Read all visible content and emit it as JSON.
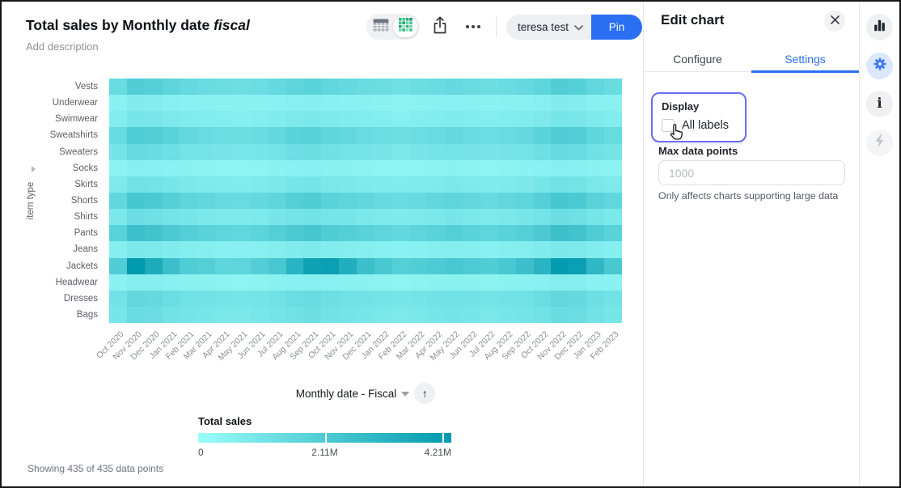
{
  "header": {
    "title_main": "Total sales by Monthly date",
    "title_italic": "fiscal",
    "description_placeholder": "Add description"
  },
  "toolbar": {
    "workbook_name": "teresa test",
    "pin_label": "Pin"
  },
  "icons": {
    "arrow_up": "↑",
    "info_glyph": "i"
  },
  "axis_control": {
    "label": "Monthly date - Fiscal"
  },
  "footer": {
    "status": "Showing 435 of 435 data points"
  },
  "panel": {
    "title": "Edit chart",
    "tabs": [
      {
        "label": "Configure",
        "active": false
      },
      {
        "label": "Settings",
        "active": true
      }
    ],
    "display": {
      "label": "Display",
      "checkbox_label": "All labels",
      "checked": false
    },
    "max_data_points": {
      "label": "Max data points",
      "placeholder": "1000",
      "value": ""
    },
    "helper": "Only affects charts supporting large data"
  },
  "chart_data": {
    "type": "heatmap",
    "title": "Total sales by Monthly date fiscal",
    "y_axis_title": "item type",
    "values_unit": "millions",
    "x": [
      "Oct 2020",
      "Nov 2020",
      "Dec 2020",
      "Jan 2021",
      "Feb 2021",
      "Mar 2021",
      "Apr 2021",
      "May 2021",
      "Jun 2021",
      "Jul 2021",
      "Aug 2021",
      "Sep 2021",
      "Oct 2021",
      "Nov 2021",
      "Dec 2021",
      "Jan 2022",
      "Feb 2022",
      "Mar 2022",
      "Apr 2022",
      "May 2022",
      "Jun 2022",
      "Jul 2022",
      "Aug 2022",
      "Sep 2022",
      "Oct 2022",
      "Nov 2022",
      "Dec 2022",
      "Jan 2023",
      "Feb 2023"
    ],
    "y": [
      "Vests",
      "Underwear",
      "Swimwear",
      "Sweatshirts",
      "Sweaters",
      "Socks",
      "Skirts",
      "Shorts",
      "Shirts",
      "Pants",
      "Jeans",
      "Jackets",
      "Headwear",
      "Dresses",
      "Bags"
    ],
    "values": [
      [
        1.81,
        2.38,
        2.28,
        2.09,
        1.9,
        1.81,
        1.71,
        1.67,
        1.75,
        1.9,
        2.09,
        2.19,
        2.0,
        1.9,
        1.81,
        1.71,
        1.62,
        1.71,
        1.81,
        1.9,
        1.81,
        1.71,
        1.81,
        1.9,
        2.09,
        2.38,
        2.28,
        2.0,
        1.81
      ],
      [
        0.81,
        1.06,
        1.02,
        0.94,
        0.85,
        0.81,
        0.77,
        0.75,
        0.78,
        0.85,
        0.94,
        0.98,
        0.89,
        0.85,
        0.81,
        0.77,
        0.72,
        0.77,
        0.81,
        0.85,
        0.81,
        0.77,
        0.81,
        0.85,
        0.94,
        1.06,
        1.02,
        0.89,
        0.81
      ],
      [
        1.05,
        1.38,
        1.32,
        1.21,
        1.1,
        1.05,
        0.99,
        0.97,
        1.01,
        1.1,
        1.21,
        1.27,
        1.16,
        1.1,
        1.05,
        0.99,
        0.94,
        0.99,
        1.05,
        1.1,
        1.05,
        0.99,
        1.05,
        1.1,
        1.21,
        1.38,
        1.32,
        1.16,
        1.05
      ],
      [
        1.85,
        2.44,
        2.34,
        2.15,
        1.95,
        1.85,
        1.76,
        1.72,
        1.79,
        1.95,
        2.15,
        2.24,
        2.05,
        1.95,
        1.85,
        1.76,
        1.66,
        1.76,
        1.85,
        1.95,
        1.85,
        1.76,
        1.85,
        1.95,
        2.15,
        2.44,
        2.34,
        2.05,
        1.85
      ],
      [
        1.43,
        1.88,
        1.8,
        1.65,
        1.5,
        1.43,
        1.35,
        1.32,
        1.38,
        1.5,
        1.65,
        1.73,
        1.58,
        1.5,
        1.43,
        1.35,
        1.28,
        1.35,
        1.43,
        1.5,
        1.43,
        1.35,
        1.43,
        1.5,
        1.65,
        1.88,
        1.8,
        1.58,
        1.43
      ],
      [
        0.71,
        0.94,
        0.9,
        0.83,
        0.75,
        0.71,
        0.68,
        0.66,
        0.69,
        0.75,
        0.83,
        0.86,
        0.79,
        0.75,
        0.71,
        0.68,
        0.64,
        0.68,
        0.71,
        0.75,
        0.71,
        0.68,
        0.71,
        0.75,
        0.83,
        0.94,
        0.9,
        0.79,
        0.71
      ],
      [
        1.19,
        1.56,
        1.5,
        1.38,
        1.25,
        1.19,
        1.13,
        1.1,
        1.15,
        1.25,
        1.38,
        1.44,
        1.31,
        1.25,
        1.19,
        1.13,
        1.06,
        1.13,
        1.19,
        1.25,
        1.19,
        1.13,
        1.19,
        1.25,
        1.38,
        1.56,
        1.5,
        1.31,
        1.19
      ],
      [
        2.0,
        2.63,
        2.52,
        2.31,
        2.1,
        2.0,
        1.89,
        1.85,
        1.93,
        2.1,
        2.31,
        2.42,
        2.21,
        2.1,
        2.0,
        1.89,
        1.79,
        1.89,
        2.0,
        2.1,
        2.0,
        1.89,
        2.0,
        2.1,
        2.31,
        2.63,
        2.52,
        2.21,
        2.0
      ],
      [
        1.28,
        1.69,
        1.62,
        1.49,
        1.35,
        1.28,
        1.22,
        1.19,
        1.24,
        1.35,
        1.49,
        1.55,
        1.42,
        1.35,
        1.28,
        1.22,
        1.15,
        1.22,
        1.28,
        1.35,
        1.28,
        1.22,
        1.28,
        1.35,
        1.49,
        1.69,
        1.62,
        1.42,
        1.28
      ],
      [
        2.19,
        2.88,
        2.76,
        2.53,
        2.3,
        2.19,
        2.07,
        2.02,
        2.12,
        2.3,
        2.53,
        2.65,
        2.42,
        2.3,
        2.19,
        2.07,
        1.96,
        2.07,
        2.19,
        2.3,
        2.19,
        2.07,
        2.19,
        2.3,
        2.53,
        2.88,
        2.76,
        2.42,
        2.19
      ],
      [
        0.95,
        1.25,
        1.2,
        1.1,
        1.0,
        0.95,
        0.9,
        0.88,
        0.92,
        1.0,
        1.1,
        1.15,
        1.05,
        1.0,
        0.95,
        0.9,
        0.85,
        0.9,
        0.95,
        1.0,
        0.95,
        0.9,
        0.95,
        1.0,
        1.1,
        1.25,
        1.2,
        1.05,
        0.95
      ],
      [
        2.4,
        4.21,
        3.6,
        2.9,
        2.45,
        2.3,
        2.05,
        2.1,
        2.35,
        2.6,
        3.3,
        3.9,
        4.0,
        3.5,
        2.9,
        2.6,
        2.3,
        2.4,
        2.5,
        2.6,
        2.5,
        2.4,
        2.6,
        2.9,
        3.3,
        4.1,
        4.0,
        3.2,
        2.6
      ],
      [
        0.76,
        1.0,
        0.96,
        0.88,
        0.8,
        0.76,
        0.72,
        0.7,
        0.74,
        0.8,
        0.88,
        0.92,
        0.84,
        0.8,
        0.76,
        0.72,
        0.68,
        0.72,
        0.76,
        0.8,
        0.76,
        0.72,
        0.76,
        0.8,
        0.88,
        1.0,
        0.96,
        0.84,
        0.76
      ],
      [
        1.52,
        2.0,
        1.92,
        1.76,
        1.6,
        1.52,
        1.44,
        1.41,
        1.47,
        1.6,
        1.76,
        1.84,
        1.68,
        1.6,
        1.52,
        1.44,
        1.36,
        1.44,
        1.52,
        1.6,
        1.52,
        1.44,
        1.52,
        1.6,
        1.76,
        2.0,
        1.92,
        1.68,
        1.52
      ],
      [
        1.38,
        1.81,
        1.74,
        1.6,
        1.45,
        1.38,
        1.31,
        1.28,
        1.33,
        1.45,
        1.6,
        1.67,
        1.52,
        1.45,
        1.38,
        1.31,
        1.23,
        1.31,
        1.38,
        1.45,
        1.38,
        1.31,
        1.38,
        1.45,
        1.6,
        1.81,
        1.74,
        1.52,
        1.38
      ]
    ],
    "color_scale": {
      "min_value": 0,
      "max_value": 4.21,
      "min_color": "#9cfdfa",
      "max_color": "#0099ae",
      "gamma": 1.3
    },
    "legend": {
      "title": "Total sales",
      "ticks": [
        "0",
        "2.11M",
        "4.21M"
      ],
      "position": "bottom-left"
    },
    "points_shown": 435,
    "points_total": 435,
    "grid": false
  }
}
